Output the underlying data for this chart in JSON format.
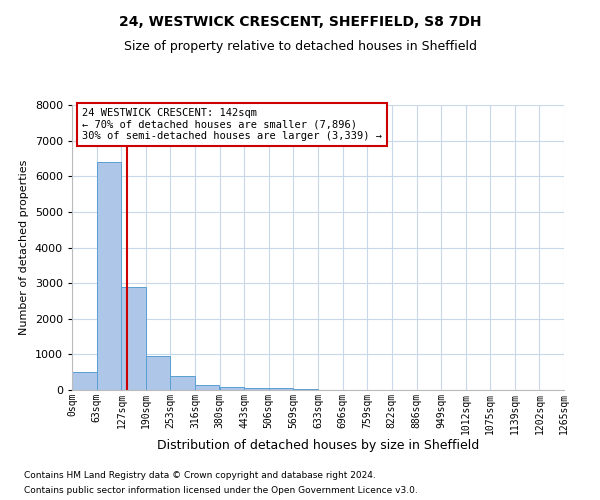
{
  "title": "24, WESTWICK CRESCENT, SHEFFIELD, S8 7DH",
  "subtitle": "Size of property relative to detached houses in Sheffield",
  "xlabel": "Distribution of detached houses by size in Sheffield",
  "ylabel": "Number of detached properties",
  "bin_edges": [
    0,
    63,
    127,
    190,
    253,
    316,
    380,
    443,
    506,
    569,
    633,
    696,
    759,
    822,
    886,
    949,
    1012,
    1075,
    1139,
    1202,
    1265
  ],
  "bar_heights": [
    500,
    6400,
    2900,
    950,
    380,
    150,
    80,
    70,
    50,
    30,
    0,
    0,
    0,
    0,
    0,
    0,
    0,
    0,
    0,
    0
  ],
  "bar_color": "#aec6e8",
  "bar_edgecolor": "#5a9fd4",
  "vline_x": 142,
  "vline_color": "#cc0000",
  "ylim": [
    0,
    8000
  ],
  "yticks": [
    0,
    1000,
    2000,
    3000,
    4000,
    5000,
    6000,
    7000,
    8000
  ],
  "annotation_title": "24 WESTWICK CRESCENT: 142sqm",
  "annotation_line1": "← 70% of detached houses are smaller (7,896)",
  "annotation_line2": "30% of semi-detached houses are larger (3,339) →",
  "annotation_box_color": "#cc0000",
  "footer_line1": "Contains HM Land Registry data © Crown copyright and database right 2024.",
  "footer_line2": "Contains public sector information licensed under the Open Government Licence v3.0.",
  "background_color": "#ffffff",
  "grid_color": "#c8d8e8",
  "title_fontsize": 10,
  "subtitle_fontsize": 9,
  "ylabel_fontsize": 8,
  "xlabel_fontsize": 9,
  "ytick_fontsize": 8,
  "xtick_fontsize": 7
}
